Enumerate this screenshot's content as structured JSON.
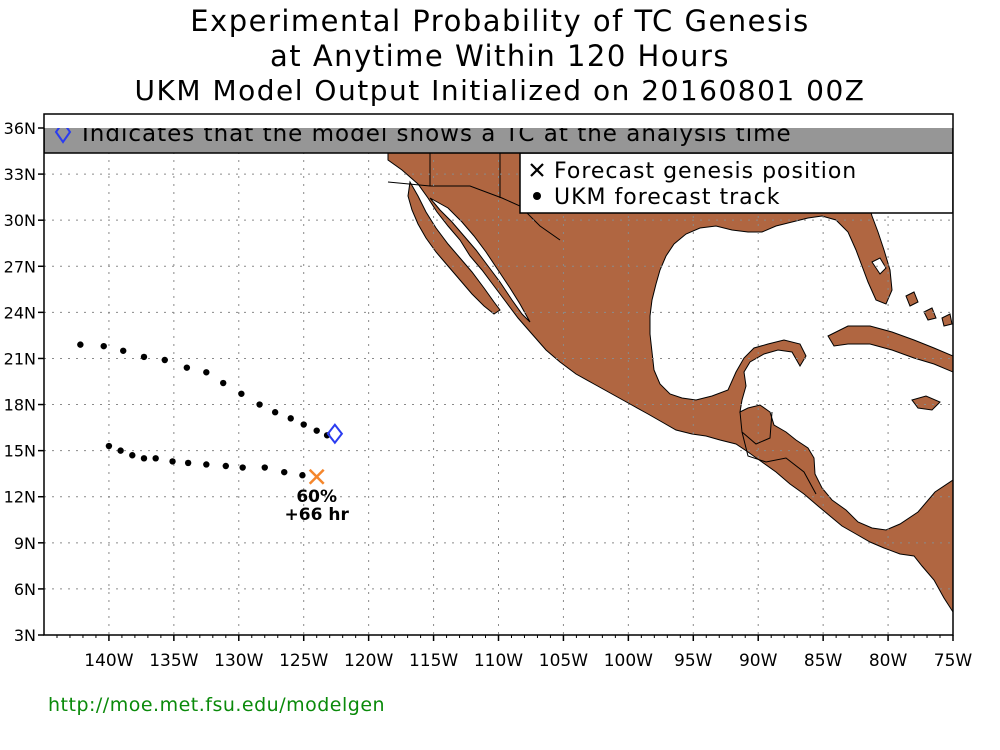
{
  "title": {
    "line1": "Experimental Probability of TC Genesis",
    "line2": "at Anytime Within 120 Hours",
    "line3": "UKM Model Output Initialized on 20160801 00Z"
  },
  "banner": {
    "icon": "diamond-icon",
    "text": "Indicates that the model shows a TC at the analysis time"
  },
  "legend": {
    "items": [
      {
        "icon": "x-mark-icon",
        "label": "Forecast genesis position"
      },
      {
        "icon": "dot-icon",
        "label": "UKM forecast track"
      }
    ]
  },
  "axes": {
    "lon_range": [
      -145,
      -75
    ],
    "lat_range": [
      3,
      36
    ],
    "x_ticks": [
      {
        "value": -140,
        "label": "140W"
      },
      {
        "value": -135,
        "label": "135W"
      },
      {
        "value": -130,
        "label": "130W"
      },
      {
        "value": -125,
        "label": "125W"
      },
      {
        "value": -120,
        "label": "120W"
      },
      {
        "value": -115,
        "label": "115W"
      },
      {
        "value": -110,
        "label": "110W"
      },
      {
        "value": -105,
        "label": "105W"
      },
      {
        "value": -100,
        "label": "100W"
      },
      {
        "value": -95,
        "label": "95W"
      },
      {
        "value": -90,
        "label": "90W"
      },
      {
        "value": -85,
        "label": "85W"
      },
      {
        "value": -80,
        "label": "80W"
      },
      {
        "value": -75,
        "label": "75W"
      }
    ],
    "y_ticks": [
      {
        "value": 3,
        "label": "3N"
      },
      {
        "value": 6,
        "label": "6N"
      },
      {
        "value": 9,
        "label": "9N"
      },
      {
        "value": 12,
        "label": "12N"
      },
      {
        "value": 15,
        "label": "15N"
      },
      {
        "value": 18,
        "label": "18N"
      },
      {
        "value": 21,
        "label": "21N"
      },
      {
        "value": 24,
        "label": "24N"
      },
      {
        "value": 27,
        "label": "27N"
      },
      {
        "value": 30,
        "label": "30N"
      },
      {
        "value": 33,
        "label": "33N"
      },
      {
        "value": 36,
        "label": "36N"
      }
    ],
    "grid": true
  },
  "colors": {
    "land": "#b06641",
    "banner_bg": "#969696",
    "diamond": "#2b3cf0",
    "genesis_x": "#f5862b",
    "track": "#000000",
    "url": "#0a8a0a"
  },
  "tracks": [
    {
      "points": [
        [
          -142.2,
          21.9
        ],
        [
          -140.4,
          21.8
        ],
        [
          -138.9,
          21.5
        ],
        [
          -137.3,
          21.1
        ],
        [
          -135.7,
          20.9
        ],
        [
          -134.0,
          20.4
        ],
        [
          -132.5,
          20.1
        ],
        [
          -131.2,
          19.4
        ],
        [
          -129.8,
          18.7
        ],
        [
          -128.4,
          18.0
        ],
        [
          -127.2,
          17.5
        ],
        [
          -126.0,
          17.1
        ],
        [
          -125.0,
          16.7
        ],
        [
          -124.0,
          16.3
        ],
        [
          -123.2,
          16.0
        ]
      ]
    },
    {
      "points": [
        [
          -140.0,
          15.3
        ],
        [
          -139.1,
          15.0
        ],
        [
          -138.2,
          14.7
        ],
        [
          -137.3,
          14.5
        ],
        [
          -136.4,
          14.5
        ],
        [
          -135.1,
          14.3
        ],
        [
          -133.9,
          14.2
        ],
        [
          -132.5,
          14.1
        ],
        [
          -131.0,
          14.0
        ],
        [
          -129.7,
          13.9
        ],
        [
          -128.0,
          13.9
        ],
        [
          -126.5,
          13.6
        ],
        [
          -125.1,
          13.4
        ]
      ]
    }
  ],
  "analysis_tc": {
    "lon": -122.6,
    "lat": 16.1
  },
  "genesis": {
    "lon": -124.0,
    "lat": 13.3,
    "probability_label": "60%",
    "lead_time_label": "+66 hr"
  },
  "source_url": "http://moe.met.fsu.edu/modelgen"
}
